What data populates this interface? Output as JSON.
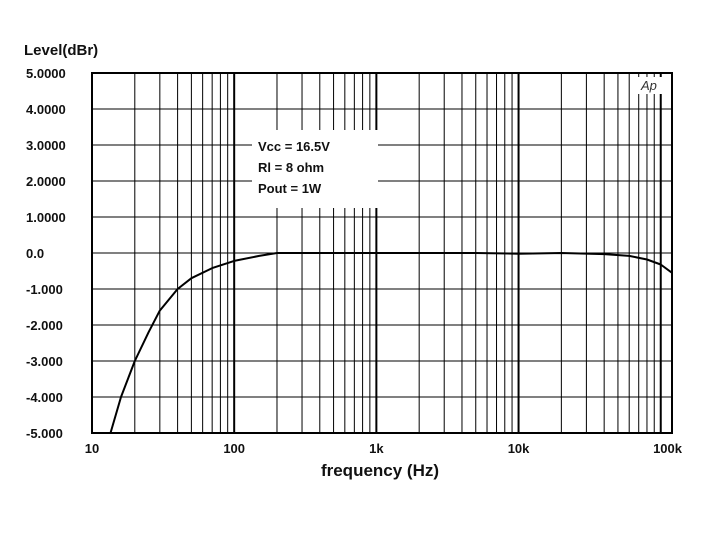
{
  "chart_data": {
    "type": "line",
    "title": "",
    "xlabel": "frequency (Hz)",
    "ylabel": "Level(dBr)",
    "x_scale": "log",
    "xlim": [
      10,
      120000
    ],
    "ylim": [
      -5,
      5
    ],
    "grid": true,
    "x_ticks": [
      {
        "value": 10,
        "label": "10"
      },
      {
        "value": 100,
        "label": "100"
      },
      {
        "value": 1000,
        "label": "1k"
      },
      {
        "value": 10000,
        "label": "10k"
      },
      {
        "value": 100000,
        "label": "100k"
      }
    ],
    "y_ticks": [
      {
        "value": 5,
        "label": "5.0000"
      },
      {
        "value": 4,
        "label": "4.0000"
      },
      {
        "value": 3,
        "label": "3.0000"
      },
      {
        "value": 2,
        "label": "2.0000"
      },
      {
        "value": 1,
        "label": "1.0000"
      },
      {
        "value": 0,
        "label": "0.0"
      },
      {
        "value": -1,
        "label": "-1.000"
      },
      {
        "value": -2,
        "label": "-2.000"
      },
      {
        "value": -3,
        "label": "-3.000"
      },
      {
        "value": -4,
        "label": "-4.000"
      },
      {
        "value": -5,
        "label": "-5.000"
      }
    ],
    "annotation": [
      "Vcc = 16.5V",
      "Rl = 8 ohm",
      "Pout = 1W"
    ],
    "logo_text": "Ap",
    "series": [
      {
        "color": "#000000",
        "x": [
          13.5,
          16,
          20,
          25,
          30,
          40,
          50,
          70,
          100,
          150,
          200,
          300,
          500,
          1000,
          2000,
          5000,
          10000,
          20000,
          40000,
          60000,
          80000,
          100000,
          120000
        ],
        "y": [
          -5.0,
          -4.0,
          -3.0,
          -2.2,
          -1.6,
          -1.0,
          -0.7,
          -0.42,
          -0.22,
          -0.08,
          0.0,
          0.0,
          0.0,
          0.0,
          0.0,
          0.0,
          -0.02,
          0.0,
          -0.03,
          -0.08,
          -0.18,
          -0.32,
          -0.55
        ]
      }
    ]
  }
}
